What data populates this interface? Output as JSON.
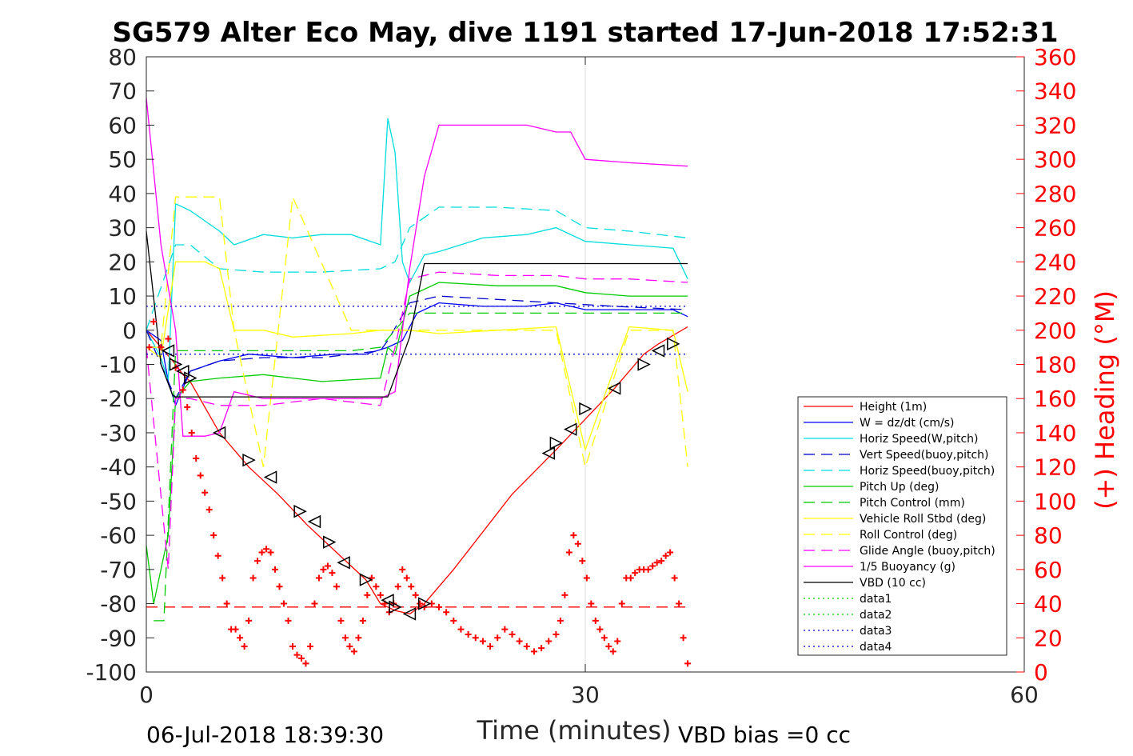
{
  "chart_data": {
    "type": "line",
    "title": "SG579 Alter Eco May, dive 1191 started 17-Jun-2018 17:52:31",
    "xlabel": "Time (minutes)",
    "ylabel_right": "(+) Heading (°M)",
    "xlim": [
      0,
      60
    ],
    "ylim_left": [
      -100,
      80
    ],
    "ylim_right": [
      0,
      360
    ],
    "x_ticks": [
      "0",
      "30",
      "60"
    ],
    "y_ticks_left": [
      "80",
      "70",
      "60",
      "50",
      "40",
      "30",
      "20",
      "10",
      "0",
      "-10",
      "-20",
      "-30",
      "-40",
      "-50",
      "-60",
      "-70",
      "-80",
      "-90",
      "-100"
    ],
    "y_ticks_right": [
      "360",
      "340",
      "320",
      "300",
      "280",
      "260",
      "240",
      "220",
      "200",
      "180",
      "160",
      "140",
      "120",
      "100",
      "80",
      "60",
      "40",
      "20",
      "0"
    ],
    "grid": "x-only",
    "legend_position": "lower-right",
    "footer_left": "06-Jul-2018 18:39:30",
    "footer_right": "VBD bias =0 cc",
    "series": [
      {
        "name": "Height (1m)",
        "color": "#ff0000",
        "style": "solid",
        "x": [
          0,
          1,
          2,
          2.5,
          3,
          5,
          7,
          9,
          11,
          13,
          15,
          16,
          17,
          18,
          19,
          21,
          25,
          28,
          30,
          32,
          34,
          35,
          37
        ],
        "y": [
          0,
          -5,
          -10,
          -13,
          -15,
          -30,
          -40,
          -48,
          -57,
          -65,
          -73,
          -80,
          -82,
          -83,
          -80,
          -70,
          -48,
          -35,
          -26,
          -17,
          -7,
          -4,
          1
        ]
      },
      {
        "name": "W = dz/dt (cm/s)",
        "color": "#0000ff",
        "style": "solid",
        "x": [
          0,
          1,
          1.5,
          2,
          3,
          5,
          7,
          10,
          13,
          15,
          16.5,
          17.5,
          18.5,
          20,
          23,
          26,
          28,
          30,
          33,
          36,
          37
        ],
        "y": [
          0,
          -3,
          -15,
          -22,
          -12,
          -9,
          -7,
          -8,
          -7,
          -7,
          -5,
          -3,
          5,
          8,
          7,
          7,
          8,
          6,
          6,
          6,
          4
        ]
      },
      {
        "name": "Horiz Speed(W,pitch)",
        "color": "#00dddd",
        "style": "solid",
        "x": [
          0,
          1,
          1.5,
          2,
          3,
          4,
          5,
          6,
          8,
          10,
          12,
          14,
          16,
          16.5,
          17,
          17.5,
          18,
          19,
          20,
          23,
          26,
          28,
          30,
          33,
          36,
          37
        ],
        "y": [
          0,
          -8,
          -15,
          37,
          35,
          32,
          29,
          25,
          28,
          27,
          28,
          28,
          25,
          62,
          52,
          20,
          14,
          22,
          23,
          27,
          28,
          30,
          26,
          25,
          24,
          15
        ]
      },
      {
        "name": "Vert Speed(buoy,pitch)",
        "color": "#0000cc",
        "style": "dashed",
        "x": [
          0,
          2,
          3,
          5,
          8,
          12,
          16,
          16.5,
          18,
          20,
          24,
          28,
          32,
          37
        ],
        "y": [
          0,
          -20,
          -12,
          -9,
          -8,
          -8,
          -6,
          -3,
          8,
          10,
          9,
          8,
          7,
          6
        ]
      },
      {
        "name": "Horiz Speed(buoy,pitch)",
        "color": "#00dddd",
        "style": "dashed",
        "x": [
          0,
          2,
          3,
          5,
          8,
          12,
          16,
          17,
          18,
          20,
          24,
          28,
          30,
          33,
          37
        ],
        "y": [
          0,
          25,
          25,
          18,
          17,
          17,
          18,
          20,
          30,
          36,
          36,
          35,
          30,
          29,
          27
        ]
      },
      {
        "name": "Pitch Up (deg)",
        "color": "#00cc00",
        "style": "solid",
        "x": [
          0,
          0.5,
          1,
          1.5,
          2,
          3,
          5,
          8,
          12,
          16,
          16.5,
          17,
          18,
          20,
          24,
          28,
          30,
          33,
          37
        ],
        "y": [
          -63,
          -80,
          -70,
          -60,
          -20,
          -15,
          -14,
          -13,
          -15,
          -14,
          -5,
          -7,
          10,
          14,
          13,
          13,
          11,
          10,
          10
        ]
      },
      {
        "name": "Pitch Control (mm)",
        "color": "#00cc00",
        "style": "dashed",
        "x": [
          0.5,
          1.2,
          2,
          6,
          10,
          14,
          16,
          18,
          20,
          30,
          37
        ],
        "y": [
          -85,
          -85,
          -6,
          -6,
          -6,
          -6,
          -5,
          5,
          5,
          5,
          5
        ]
      },
      {
        "name": "Vehicle Roll Stbd (deg)",
        "color": "#ffff00",
        "style": "solid",
        "x": [
          0,
          1,
          2,
          3,
          4,
          5,
          6,
          8,
          10,
          14,
          16,
          17,
          18,
          20,
          24,
          28,
          30,
          33,
          36,
          37
        ],
        "y": [
          -5,
          -8,
          20,
          20,
          20,
          18,
          0,
          0,
          -2,
          -1,
          0,
          0,
          0,
          -1,
          0,
          1,
          -35,
          1,
          0,
          -18
        ]
      },
      {
        "name": "Roll Control (deg)",
        "color": "#ffff00",
        "style": "dashed",
        "x": [
          0,
          1,
          2,
          3,
          4,
          5,
          6,
          8,
          10,
          14,
          16,
          17,
          18,
          20,
          24,
          28,
          30,
          33,
          36,
          37
        ],
        "y": [
          -5,
          -5,
          39,
          39,
          39,
          39,
          0,
          -40,
          39,
          0,
          0,
          0,
          0,
          0,
          0,
          0,
          -40,
          0,
          0,
          -40
        ]
      },
      {
        "name": "Glide Angle (buoy,pitch)",
        "color": "#ff00ff",
        "style": "dashed",
        "x": [
          0,
          1.5,
          2,
          3,
          5,
          8,
          12,
          16,
          17,
          18,
          20,
          24,
          28,
          30,
          33,
          37
        ],
        "y": [
          -5,
          -70,
          -20,
          -20,
          -22,
          -22,
          -20,
          -22,
          -5,
          15,
          17,
          16,
          16,
          15,
          15,
          14
        ]
      },
      {
        "name": "1/5 Buoyancy (g)",
        "color": "#ff00ff",
        "style": "solid",
        "x": [
          0,
          1,
          2,
          2.5,
          4,
          5,
          6,
          8,
          10,
          14,
          16,
          17,
          18,
          19,
          20,
          22,
          26,
          28,
          29,
          30,
          33,
          37
        ],
        "y": [
          68,
          25,
          0,
          -31,
          -31,
          -30,
          -18,
          -20,
          -20,
          -20,
          -20,
          -18,
          18,
          45,
          60,
          60,
          60,
          58,
          58,
          50,
          49,
          48
        ]
      },
      {
        "name": "VBD (10 cc)",
        "color": "#000000",
        "style": "solid",
        "x": [
          0,
          1,
          1.8,
          2,
          16.5,
          18,
          19,
          37
        ],
        "y": [
          29,
          -10,
          -19,
          -19.5,
          -19.5,
          -2,
          19.5,
          19.5
        ]
      },
      {
        "name": "data1",
        "color": "#00cc00",
        "style": "dotted",
        "x": [],
        "y": []
      },
      {
        "name": "data2",
        "color": "#00cc00",
        "style": "dotted",
        "x": [],
        "y": []
      },
      {
        "name": "data3",
        "color": "#0000cc",
        "style": "dotted",
        "x": [
          0,
          37
        ],
        "y": [
          7,
          7
        ]
      },
      {
        "name": "data4",
        "color": "#0000cc",
        "style": "dotted",
        "x": [
          0,
          37
        ],
        "y": [
          -7,
          -7
        ]
      }
    ],
    "extra_lines": [
      {
        "color": "#ff0000",
        "style": "dashed",
        "x": [
          0,
          37
        ],
        "y": [
          -81,
          -81
        ]
      }
    ],
    "heading_points": {
      "color": "#ff0000",
      "marker": "+",
      "axis": "right",
      "x": [
        0.2,
        0.5,
        1,
        1.5,
        2,
        2.5,
        2.8,
        3.1,
        3.4,
        3.7,
        4,
        4.3,
        4.6,
        4.9,
        5.2,
        5.5,
        5.8,
        6.1,
        6.4,
        6.7,
        7,
        7.3,
        7.6,
        7.9,
        8.2,
        8.5,
        8.8,
        9.1,
        9.4,
        9.7,
        10,
        10.3,
        10.6,
        10.9,
        11.2,
        11.5,
        11.8,
        12.1,
        12.4,
        12.7,
        13,
        13.3,
        13.6,
        13.9,
        14.2,
        14.5,
        14.8,
        15.1,
        15.4,
        15.7,
        16,
        16.3,
        16.6,
        16.9,
        17.2,
        17.5,
        17.8,
        18.1,
        18.4,
        18.7,
        19,
        19.5,
        20,
        20.5,
        21,
        21.5,
        22,
        22.5,
        23,
        23.5,
        24,
        24.5,
        25,
        25.5,
        26,
        26.5,
        27,
        27.5,
        28,
        28.3,
        28.6,
        28.9,
        29.2,
        29.5,
        29.8,
        30.1,
        30.4,
        30.7,
        31,
        31.3,
        31.6,
        31.9,
        32.2,
        32.5,
        32.8,
        33.1,
        33.4,
        33.7,
        34,
        34.3,
        34.6,
        34.9,
        35.2,
        35.5,
        35.8,
        36.1,
        36.4,
        36.7,
        37
      ],
      "y": [
        190,
        205,
        190,
        195,
        178,
        165,
        155,
        140,
        125,
        115,
        105,
        95,
        80,
        68,
        55,
        40,
        25,
        25,
        20,
        15,
        30,
        55,
        65,
        70,
        72,
        70,
        60,
        50,
        40,
        30,
        15,
        10,
        8,
        5,
        15,
        40,
        55,
        60,
        62,
        58,
        50,
        30,
        20,
        15,
        12,
        20,
        30,
        45,
        55,
        50,
        45,
        40,
        35,
        40,
        50,
        60,
        55,
        50,
        45,
        40,
        38,
        40,
        38,
        35,
        30,
        25,
        22,
        20,
        18,
        15,
        20,
        25,
        22,
        18,
        15,
        12,
        14,
        18,
        22,
        30,
        45,
        70,
        80,
        75,
        65,
        55,
        40,
        30,
        25,
        20,
        15,
        12,
        18,
        40,
        55,
        55,
        58,
        60,
        60,
        60,
        62,
        64,
        65,
        68,
        70,
        55,
        40,
        20,
        5
      ]
    },
    "glider_markers": {
      "color": "#000000",
      "marker": "triangle",
      "axis": "left",
      "x": [
        1.5,
        2,
        2.5,
        3,
        5,
        7,
        8.5,
        10.5,
        11.5,
        12.5,
        13.5,
        15,
        16.5,
        17,
        18,
        19,
        27.5,
        28,
        29,
        30,
        32,
        34,
        35,
        36
      ],
      "y": [
        -6,
        -10,
        -12,
        -14,
        -30,
        -38,
        -43,
        -53,
        -56,
        -62,
        -68,
        -73,
        -79,
        -81,
        -83,
        -80,
        -36,
        -33,
        -29,
        -23,
        -17,
        -10,
        -6,
        -4
      ]
    }
  }
}
